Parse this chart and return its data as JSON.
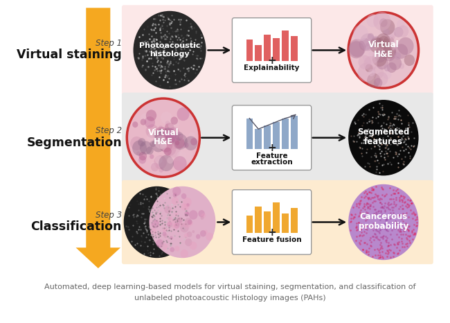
{
  "fig_width": 6.5,
  "fig_height": 4.66,
  "dpi": 100,
  "bg_color": "#ffffff",
  "row_bg_colors": [
    "#fce8e8",
    "#e8e8e8",
    "#fdebd0"
  ],
  "step_labels": [
    "Step 1",
    "Step 2",
    "Step 3"
  ],
  "main_labels": [
    "Virtual staining",
    "Segmentation",
    "Classification"
  ],
  "input_labels_1": [
    "Photoacoustic",
    "histology"
  ],
  "input_labels_2": [
    "Virtual",
    "H&E"
  ],
  "middle_label_1": "Explainability",
  "middle_label_2": "Feature\nextraction",
  "middle_label_3": "Feature fusion",
  "output_label_1a": "Virtual",
  "output_label_1b": "H&E",
  "output_label_2a": "Segmented",
  "output_label_2b": "features",
  "output_label_3a": "Cancerous",
  "output_label_3b": "probability",
  "bar_color_1": "#e06060",
  "bar_color_2": "#8fa8c8",
  "bar_color_3": "#f0a830",
  "caption_line1": "Automated, deep learning-based models for virtual staining, segmentation, and classification of",
  "caption_line2": "unlabeled photoacoustic Histology images (PAHs)",
  "caption_color": "#666666",
  "caption_fontsize": 8.0,
  "arrow_orange": "#f5a820",
  "arrow_orange_dark": "#e89010"
}
